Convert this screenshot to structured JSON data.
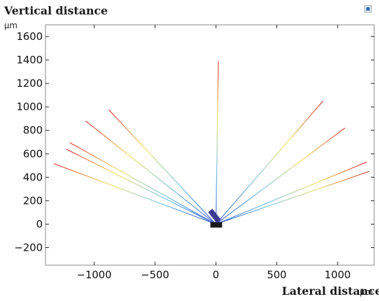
{
  "chart_data": {
    "type": "line",
    "title": "Vertical distance",
    "ylabel_unit": "µm",
    "xlabel": "Lateral distance",
    "xlabel_unit": "µm",
    "xlim": [
      -1400,
      1300
    ],
    "ylim": [
      -350,
      1700
    ],
    "xticks": [
      -1000,
      -500,
      0,
      500,
      1000
    ],
    "yticks": [
      -200,
      0,
      200,
      400,
      600,
      800,
      1000,
      1200,
      1400,
      1600
    ],
    "xtick_labels": [
      "−1000",
      "−500",
      "0",
      "500",
      "1000"
    ],
    "ytick_labels": [
      "−200",
      "0",
      "200",
      "400",
      "600",
      "800",
      "1000",
      "1200",
      "1400",
      "1600"
    ],
    "grid": false,
    "legend": "none",
    "color_scale": [
      "#3f5fd0",
      "#7ac7e8",
      "#f2e26a",
      "#d63a3a"
    ],
    "source": {
      "x": 0,
      "y": 0,
      "label_color": "#3b3b8f"
    },
    "rays": [
      {
        "end": [
          -1330,
          515
        ]
      },
      {
        "end": [
          -1230,
          640
        ]
      },
      {
        "end": [
          -1200,
          695
        ]
      },
      {
        "end": [
          -1070,
          880
        ]
      },
      {
        "end": [
          -880,
          975
        ]
      },
      {
        "end": [
          20,
          1390
        ]
      },
      {
        "end": [
          880,
          1050
        ]
      },
      {
        "end": [
          1060,
          820
        ]
      },
      {
        "end": [
          1240,
          530
        ]
      },
      {
        "end": [
          1260,
          450
        ]
      }
    ]
  },
  "icons": {
    "corner": "plot-options-icon"
  }
}
